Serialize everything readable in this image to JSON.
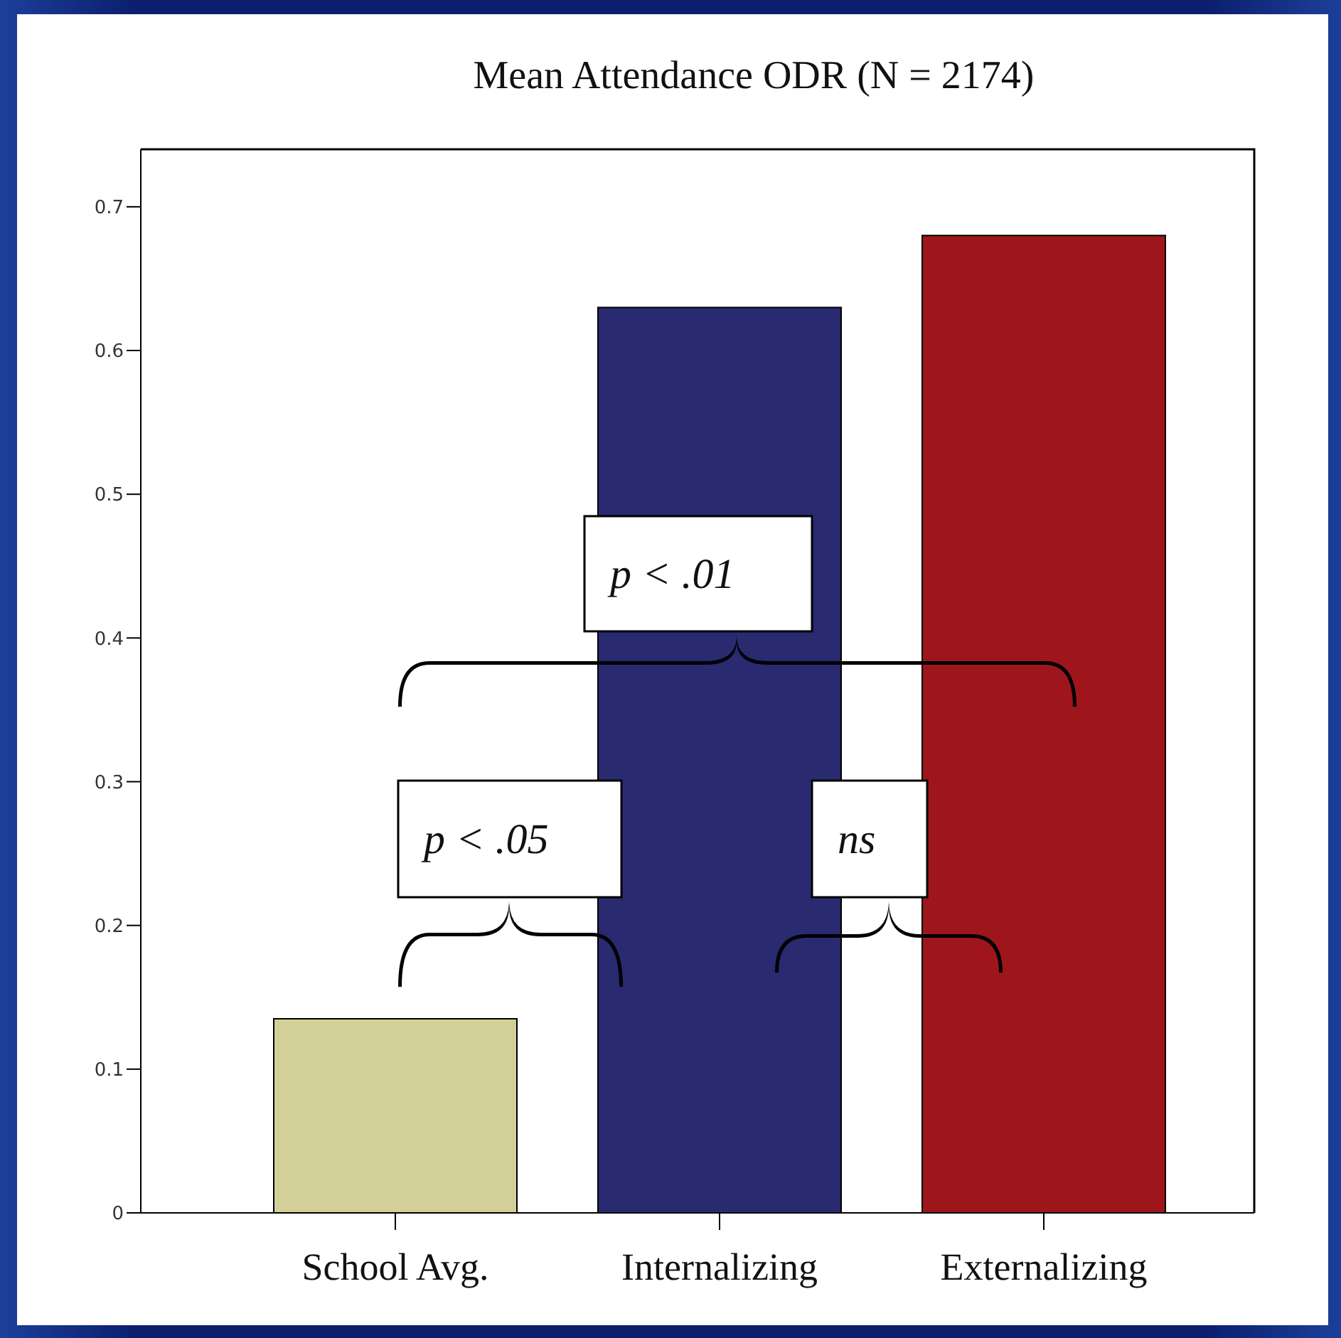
{
  "chart_data": {
    "type": "bar",
    "title": "Mean Attendance ODR (N = 2174)",
    "categories": [
      "School Avg.",
      "Internalizing",
      "Externalizing"
    ],
    "values": [
      0.135,
      0.63,
      0.68
    ],
    "colors": [
      "#d3cf98",
      "#292a70",
      "#9e161b"
    ],
    "ylim": [
      0,
      0.74
    ],
    "yticks": [
      0,
      0.1,
      0.2,
      0.3,
      0.4,
      0.5,
      0.6,
      0.7
    ],
    "annotations": [
      "p < .05",
      "ns",
      "p < .01"
    ]
  }
}
